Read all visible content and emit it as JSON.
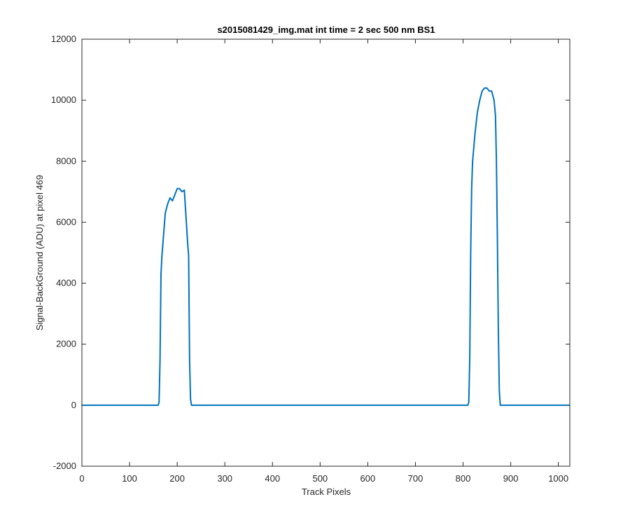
{
  "chart_data": {
    "type": "line",
    "title": "s2015081429_img.mat int time = 2 sec  500 nm BS1",
    "xlabel": "Track Pixels",
    "ylabel": "Signal-BackGround (ADU) at pixel 469",
    "xlim": [
      0,
      1024
    ],
    "ylim": [
      -2000,
      12000
    ],
    "xticks": [
      0,
      100,
      200,
      300,
      400,
      500,
      600,
      700,
      800,
      900,
      1000
    ],
    "yticks": [
      -2000,
      0,
      2000,
      4000,
      6000,
      8000,
      10000,
      12000
    ],
    "grid": false,
    "line_color": "#0072BD",
    "series": [
      {
        "x": [
          0,
          100,
          150,
          160,
          162,
          164,
          166,
          168,
          170,
          175,
          180,
          185,
          190,
          195,
          200,
          205,
          210,
          215,
          218,
          220,
          222,
          224,
          226,
          228,
          230,
          235,
          300,
          400,
          500,
          600,
          700,
          800,
          805,
          810,
          812,
          814,
          816,
          818,
          820,
          825,
          830,
          835,
          840,
          845,
          850,
          855,
          860,
          865,
          868,
          870,
          872,
          874,
          876,
          878,
          880,
          900,
          1000,
          1024
        ],
        "y": [
          0,
          0,
          0,
          0,
          100,
          1500,
          4300,
          4900,
          5300,
          6300,
          6600,
          6800,
          6700,
          6900,
          7100,
          7100,
          7000,
          7050,
          6300,
          5800,
          5300,
          4900,
          1500,
          200,
          0,
          0,
          0,
          0,
          0,
          0,
          0,
          0,
          0,
          0,
          100,
          1500,
          5000,
          7100,
          8000,
          8900,
          9600,
          10000,
          10300,
          10400,
          10400,
          10300,
          10300,
          10000,
          9500,
          8000,
          5500,
          2500,
          500,
          0,
          0,
          0,
          0,
          0
        ]
      }
    ]
  }
}
